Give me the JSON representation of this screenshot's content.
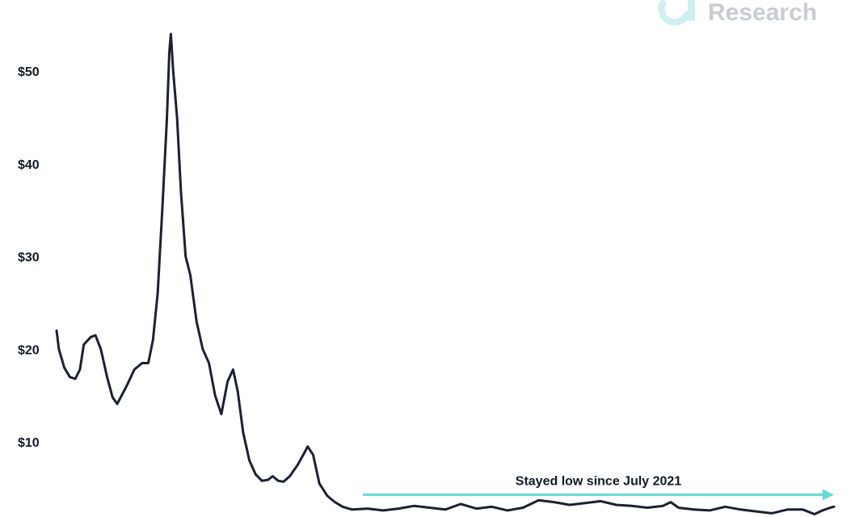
{
  "brand": {
    "name": "Research",
    "logo_icon": "logo-mark-icon",
    "logo_color": "#cfeff0",
    "text_color": "#c9ccd1"
  },
  "chart_data": {
    "type": "line",
    "title": "",
    "xlabel": "",
    "ylabel": "",
    "xlim": [
      0,
      1
    ],
    "ylim": [
      0,
      55.5
    ],
    "y_ticks": [
      10,
      20,
      30,
      40,
      50
    ],
    "y_tick_labels": [
      "$10",
      "$20",
      "$30",
      "$40",
      "$50"
    ],
    "grid": false,
    "legend": "none",
    "series": [
      {
        "color": "#1b2131",
        "points": [
          [
            0.0,
            22.0
          ],
          [
            0.003,
            20.0
          ],
          [
            0.01,
            18.0
          ],
          [
            0.017,
            17.0
          ],
          [
            0.024,
            16.8
          ],
          [
            0.03,
            17.8
          ],
          [
            0.035,
            20.5
          ],
          [
            0.044,
            21.3
          ],
          [
            0.05,
            21.5
          ],
          [
            0.057,
            20.0
          ],
          [
            0.065,
            17.0
          ],
          [
            0.072,
            14.8
          ],
          [
            0.078,
            14.1
          ],
          [
            0.09,
            16.0
          ],
          [
            0.1,
            17.8
          ],
          [
            0.11,
            18.5
          ],
          [
            0.118,
            18.5
          ],
          [
            0.124,
            21.0
          ],
          [
            0.13,
            26.0
          ],
          [
            0.136,
            35.0
          ],
          [
            0.142,
            45.0
          ],
          [
            0.145,
            52.0
          ],
          [
            0.147,
            54.0
          ],
          [
            0.15,
            50.0
          ],
          [
            0.155,
            45.0
          ],
          [
            0.16,
            37.0
          ],
          [
            0.166,
            30.0
          ],
          [
            0.172,
            28.0
          ],
          [
            0.18,
            23.0
          ],
          [
            0.188,
            20.0
          ],
          [
            0.196,
            18.5
          ],
          [
            0.204,
            15.0
          ],
          [
            0.212,
            13.0
          ],
          [
            0.22,
            16.5
          ],
          [
            0.227,
            17.8
          ],
          [
            0.233,
            15.5
          ],
          [
            0.24,
            11.0
          ],
          [
            0.248,
            8.0
          ],
          [
            0.256,
            6.5
          ],
          [
            0.264,
            5.8
          ],
          [
            0.272,
            5.9
          ],
          [
            0.278,
            6.3
          ],
          [
            0.285,
            5.8
          ],
          [
            0.292,
            5.7
          ],
          [
            0.3,
            6.3
          ],
          [
            0.31,
            7.5
          ],
          [
            0.318,
            8.7
          ],
          [
            0.323,
            9.5
          ],
          [
            0.33,
            8.6
          ],
          [
            0.338,
            5.5
          ],
          [
            0.348,
            4.2
          ],
          [
            0.358,
            3.5
          ],
          [
            0.368,
            3.0
          ],
          [
            0.38,
            2.7
          ],
          [
            0.4,
            2.8
          ],
          [
            0.42,
            2.6
          ],
          [
            0.44,
            2.8
          ],
          [
            0.46,
            3.1
          ],
          [
            0.48,
            2.9
          ],
          [
            0.5,
            2.7
          ],
          [
            0.52,
            3.3
          ],
          [
            0.54,
            2.8
          ],
          [
            0.56,
            3.0
          ],
          [
            0.58,
            2.6
          ],
          [
            0.6,
            2.9
          ],
          [
            0.62,
            3.7
          ],
          [
            0.64,
            3.5
          ],
          [
            0.66,
            3.2
          ],
          [
            0.68,
            3.4
          ],
          [
            0.7,
            3.6
          ],
          [
            0.72,
            3.2
          ],
          [
            0.74,
            3.1
          ],
          [
            0.76,
            2.9
          ],
          [
            0.78,
            3.1
          ],
          [
            0.79,
            3.5
          ],
          [
            0.8,
            2.9
          ],
          [
            0.82,
            2.7
          ],
          [
            0.84,
            2.6
          ],
          [
            0.86,
            3.0
          ],
          [
            0.88,
            2.7
          ],
          [
            0.9,
            2.5
          ],
          [
            0.92,
            2.3
          ],
          [
            0.94,
            2.7
          ],
          [
            0.96,
            2.7
          ],
          [
            0.975,
            2.2
          ],
          [
            0.985,
            2.6
          ],
          [
            0.995,
            2.9
          ],
          [
            1.0,
            3.0
          ]
        ]
      }
    ],
    "annotation": {
      "text": "Stayed low since July 2021",
      "x_start": 0.394,
      "x_end": 1.0,
      "y": 4.3,
      "color": "#66d9d3"
    }
  }
}
